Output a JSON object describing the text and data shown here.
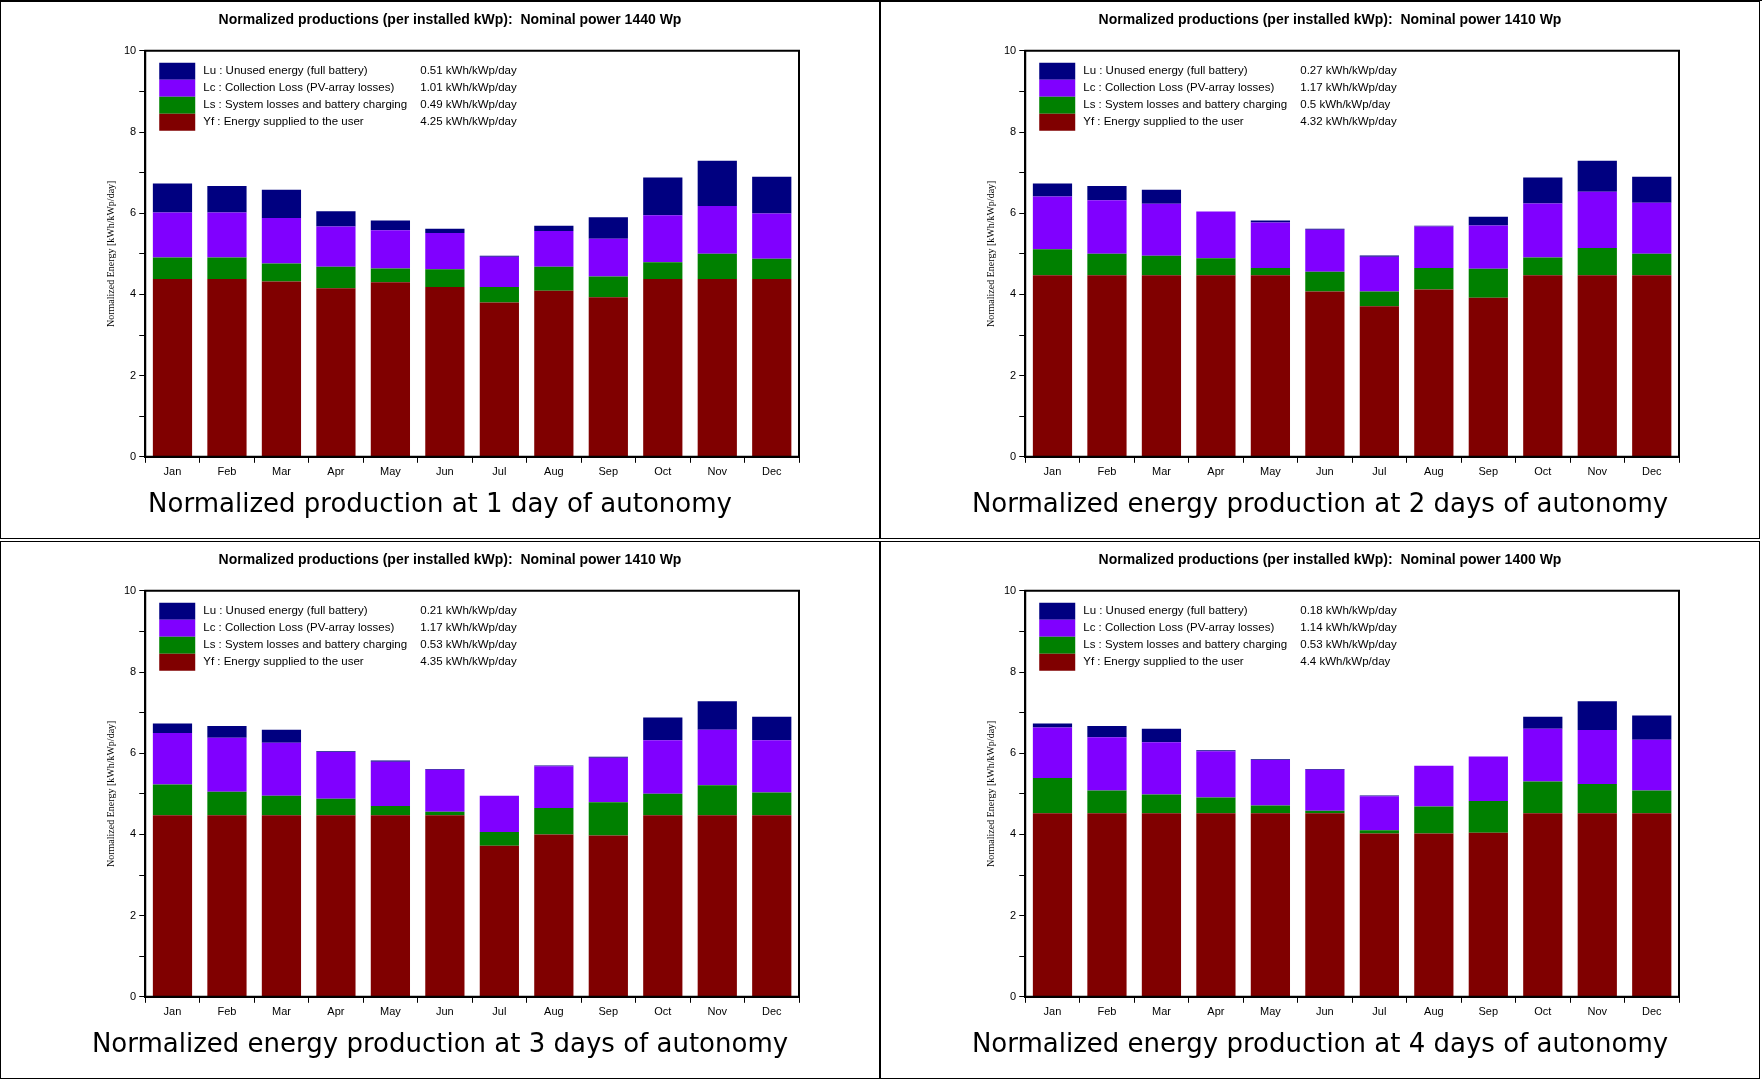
{
  "chart_data": [
    {
      "type": "bar",
      "stacked": true,
      "title": "Normalized productions (per installed kWp):  Nominal power 1440 Wp",
      "ylabel": "Normalized Energy [kWh/kWp/day]",
      "categories": [
        "Jan",
        "Feb",
        "Mar",
        "Apr",
        "May",
        "Jun",
        "Jul",
        "Aug",
        "Sep",
        "Oct",
        "Nov",
        "Dec"
      ],
      "ylim": [
        0,
        10
      ],
      "yticks": [
        0,
        {
          "value": 1,
          "label": null
        },
        2,
        {
          "value": 3,
          "label": null
        },
        4,
        {
          "value": 5,
          "label": null
        },
        6,
        {
          "value": 7,
          "label": null
        },
        8,
        {
          "value": 9,
          "label": null
        },
        10
      ],
      "legend": "top left",
      "annotations": [
        "Normalized production at 1 day of autonomy"
      ],
      "series": [
        {
          "name": "Yf : Energy supplied to the user\t4.25 kWh/kWp/day",
          "color": "#800000",
          "values": [
            4.38,
            4.38,
            4.32,
            4.15,
            4.3,
            4.18,
            3.8,
            4.09,
            3.93,
            4.38,
            4.38,
            4.38
          ]
        },
        {
          "name": "Ls : System losses and battery charging\t0.49 kWh/kWp/day",
          "color": "#008000",
          "values": [
            0.53,
            0.53,
            0.44,
            0.53,
            0.34,
            0.44,
            0.38,
            0.59,
            0.51,
            0.41,
            0.62,
            0.5
          ]
        },
        {
          "name": "Lc : Collection Loss (PV-array losses)\t1.01 kWh/kWp/day",
          "color": "#8000ff",
          "values": [
            1.11,
            1.11,
            1.12,
            0.99,
            0.94,
            0.89,
            0.75,
            0.88,
            0.93,
            1.16,
            1.18,
            1.11
          ]
        },
        {
          "name": "Lu : Unused energy (full battery)\t0.51 kWh/kWp/day",
          "color": "#000080",
          "values": [
            0.71,
            0.65,
            0.7,
            0.38,
            0.24,
            0.11,
            0.02,
            0.13,
            0.53,
            0.93,
            1.11,
            0.91
          ]
        }
      ]
    },
    {
      "type": "bar",
      "stacked": true,
      "title": "Normalized productions (per installed kWp):  Nominal power 1410 Wp",
      "ylabel": "Normalized Energy [kWh/kWp/day]",
      "categories": [
        "Jan",
        "Feb",
        "Mar",
        "Apr",
        "May",
        "Jun",
        "Jul",
        "Aug",
        "Sep",
        "Oct",
        "Nov",
        "Dec"
      ],
      "ylim": [
        0,
        10
      ],
      "yticks": [
        0,
        {
          "value": 1,
          "label": null
        },
        2,
        {
          "value": 3,
          "label": null
        },
        4,
        {
          "value": 5,
          "label": null
        },
        6,
        {
          "value": 7,
          "label": null
        },
        8,
        {
          "value": 9,
          "label": null
        },
        10
      ],
      "legend": "top left",
      "annotations": [
        "Normalized energy production at 2 days of autonomy"
      ],
      "series": [
        {
          "name": "Yf : Energy supplied to the user\t4.32 kWh/kWp/day",
          "color": "#800000",
          "values": [
            4.47,
            4.47,
            4.47,
            4.47,
            4.47,
            4.07,
            3.71,
            4.12,
            3.92,
            4.47,
            4.47,
            4.47
          ]
        },
        {
          "name": "Ls : System losses and battery charging\t0.5 kWh/kWp/day",
          "color": "#008000",
          "values": [
            0.64,
            0.53,
            0.48,
            0.42,
            0.18,
            0.49,
            0.36,
            0.53,
            0.71,
            0.44,
            0.67,
            0.53
          ]
        },
        {
          "name": "Lc : Collection Loss (PV-array losses)\t1.17 kWh/kWp/day",
          "color": "#8000ff",
          "values": [
            1.3,
            1.32,
            1.28,
            1.15,
            1.12,
            1.03,
            0.86,
            1.02,
            1.07,
            1.33,
            1.39,
            1.26
          ]
        },
        {
          "name": "Lu : Unused energy (full battery)\t0.27 kWh/kWp/day",
          "color": "#000080",
          "values": [
            0.32,
            0.35,
            0.35,
            null,
            0.05,
            0.03,
            0.03,
            0.02,
            0.21,
            0.64,
            0.76,
            0.64
          ]
        }
      ]
    },
    {
      "type": "bar",
      "stacked": true,
      "title": "Normalized productions (per installed kWp):  Nominal power 1410 Wp",
      "ylabel": "Normalized Energy [kWh/kWp/day]",
      "categories": [
        "Jan",
        "Feb",
        "Mar",
        "Apr",
        "May",
        "Jun",
        "Jul",
        "Aug",
        "Sep",
        "Oct",
        "Nov",
        "Dec"
      ],
      "ylim": [
        0,
        10
      ],
      "yticks": [
        0,
        {
          "value": 1,
          "label": null
        },
        2,
        {
          "value": 3,
          "label": null
        },
        4,
        {
          "value": 5,
          "label": null
        },
        6,
        {
          "value": 7,
          "label": null
        },
        8,
        {
          "value": 9,
          "label": null
        },
        10
      ],
      "legend": "top left",
      "annotations": [
        "Normalized energy production at 3 days of autonomy"
      ],
      "series": [
        {
          "name": "Yf : Energy supplied to the user\t4.35 kWh/kWp/day",
          "color": "#800000",
          "values": [
            4.47,
            4.47,
            4.47,
            4.47,
            4.47,
            4.47,
            3.72,
            4.0,
            3.97,
            4.47,
            4.47,
            4.47
          ]
        },
        {
          "name": "Ls : System losses and battery charging\t0.53 kWh/kWp/day",
          "color": "#008000",
          "values": [
            0.76,
            0.58,
            0.48,
            0.41,
            0.23,
            0.09,
            0.34,
            0.65,
            0.82,
            0.53,
            0.74,
            0.56
          ]
        },
        {
          "name": "Lc : Collection Loss (PV-array losses)\t1.17 kWh/kWp/day",
          "color": "#8000ff",
          "values": [
            1.27,
            1.33,
            1.31,
            1.15,
            1.09,
            1.03,
            0.89,
            1.03,
            1.1,
            1.32,
            1.37,
            1.29
          ]
        },
        {
          "name": "Lu : Unused energy (full battery)\t0.21 kWh/kWp/day",
          "color": "#000080",
          "values": [
            0.23,
            0.29,
            0.32,
            0.02,
            0.03,
            0.02,
            null,
            0.02,
            0.02,
            0.56,
            0.7,
            0.58
          ]
        }
      ]
    },
    {
      "type": "bar",
      "stacked": true,
      "title": "Normalized productions (per installed kWp):  Nominal power 1400 Wp",
      "ylabel": "Normalized Energy [kWh/kWp/day]",
      "categories": [
        "Jan",
        "Feb",
        "Mar",
        "Apr",
        "May",
        "Jun",
        "Jul",
        "Aug",
        "Sep",
        "Oct",
        "Nov",
        "Dec"
      ],
      "ylim": [
        0,
        10
      ],
      "yticks": [
        0,
        {
          "value": 1,
          "label": null
        },
        2,
        {
          "value": 3,
          "label": null
        },
        4,
        {
          "value": 5,
          "label": null
        },
        6,
        {
          "value": 7,
          "label": null
        },
        8,
        {
          "value": 9,
          "label": null
        },
        10
      ],
      "legend": "top left",
      "annotations": [
        "Normalized energy production at 4 days of autonomy"
      ],
      "series": [
        {
          "name": "Yf : Energy supplied to the user\t4.4 kWh/kWp/day",
          "color": "#800000",
          "values": [
            4.52,
            4.52,
            4.52,
            4.52,
            4.52,
            4.52,
            4.02,
            4.02,
            4.04,
            4.52,
            4.52,
            4.52
          ]
        },
        {
          "name": "Ls : System losses and battery charging\t0.53 kWh/kWp/day",
          "color": "#008000",
          "values": [
            0.87,
            0.56,
            0.46,
            0.39,
            0.19,
            0.06,
            0.08,
            0.67,
            0.78,
            0.78,
            0.72,
            0.56
          ]
        },
        {
          "name": "Lc : Collection Loss (PV-array losses)\t1.14 kWh/kWp/day",
          "color": "#8000ff",
          "values": [
            1.24,
            1.31,
            1.29,
            1.14,
            1.12,
            1.01,
            0.84,
            1.0,
            1.1,
            1.3,
            1.33,
            1.25
          ]
        },
        {
          "name": "Lu : Unused energy (full battery)\t0.18 kWh/kWp/day",
          "color": "#000080",
          "values": [
            0.1,
            0.28,
            0.33,
            0.02,
            0.02,
            0.02,
            0.02,
            null,
            null,
            0.3,
            0.71,
            0.6
          ]
        }
      ]
    }
  ]
}
